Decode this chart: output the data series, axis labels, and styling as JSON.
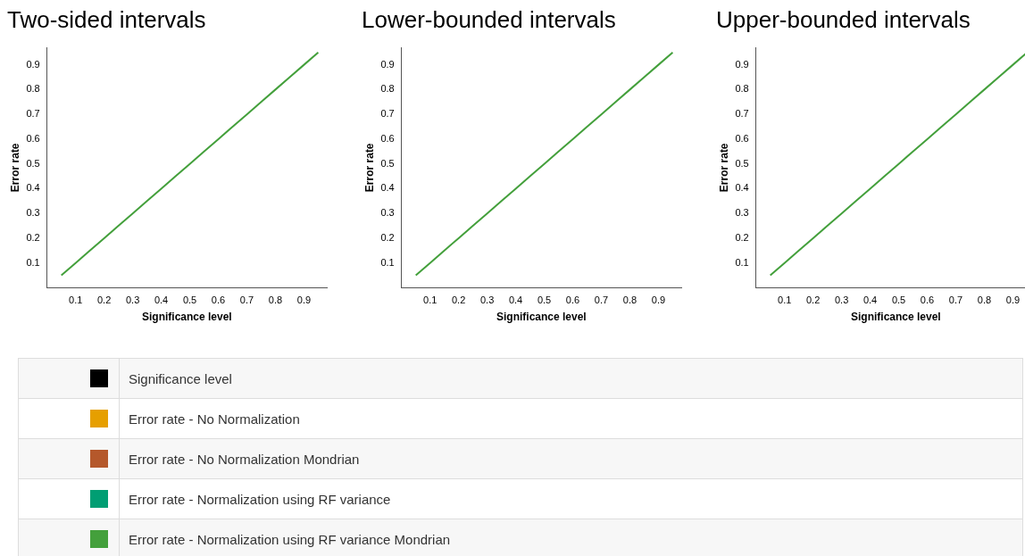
{
  "chart_data": [
    {
      "type": "line",
      "title": "Two-sided intervals",
      "xlabel": "Significance level",
      "ylabel": "Error rate",
      "legend": "bottom",
      "xlim": [
        0,
        0.98
      ],
      "ylim": [
        0,
        0.97
      ],
      "xticks": [
        0.1,
        0.2,
        0.3,
        0.4,
        0.5,
        0.6,
        0.7,
        0.8,
        0.9
      ],
      "yticks": [
        0.1,
        0.2,
        0.3,
        0.4,
        0.5,
        0.6,
        0.7,
        0.8,
        0.9
      ],
      "marker": "none",
      "line_style": "solid",
      "x": [
        0.05,
        0.1,
        0.15,
        0.2,
        0.25,
        0.3,
        0.35,
        0.4,
        0.45,
        0.5,
        0.55,
        0.6,
        0.65,
        0.7,
        0.75,
        0.8,
        0.85,
        0.9,
        0.95
      ],
      "series": [
        {
          "name": "Significance level",
          "color": "#000000",
          "values": [
            null,
            null,
            null,
            null,
            null,
            null,
            null,
            null,
            null,
            null,
            null,
            null,
            null,
            null,
            null,
            null,
            null,
            null,
            null
          ]
        },
        {
          "name": "Error rate - No Normalization",
          "color": "#e69f00",
          "values": [
            null,
            null,
            null,
            null,
            null,
            null,
            null,
            null,
            null,
            null,
            null,
            null,
            null,
            null,
            null,
            null,
            null,
            null,
            null
          ]
        },
        {
          "name": "Error rate - No Normalization Mondrian",
          "color": "#b5582b",
          "values": [
            null,
            null,
            null,
            null,
            null,
            null,
            null,
            null,
            null,
            null,
            null,
            null,
            null,
            null,
            null,
            null,
            null,
            null,
            null
          ]
        },
        {
          "name": "Error rate - Normalization using RF variance",
          "color": "#009e73",
          "values": [
            null,
            null,
            null,
            null,
            null,
            null,
            null,
            null,
            null,
            null,
            null,
            null,
            null,
            null,
            null,
            null,
            null,
            null,
            null
          ]
        },
        {
          "name": "Error rate - Normalization using RF variance Mondrian",
          "color": "#44a03c",
          "values": [
            0.05,
            0.1,
            0.15,
            0.2,
            0.25,
            0.3,
            0.35,
            0.4,
            0.45,
            0.5,
            0.55,
            0.6,
            0.65,
            0.7,
            0.75,
            0.8,
            0.85,
            0.9,
            0.95
          ]
        }
      ]
    },
    {
      "type": "line",
      "title": "Lower-bounded intervals",
      "xlabel": "Significance level",
      "ylabel": "Error rate",
      "xlim": [
        0,
        0.98
      ],
      "ylim": [
        0,
        0.97
      ],
      "xticks": [
        0.1,
        0.2,
        0.3,
        0.4,
        0.5,
        0.6,
        0.7,
        0.8,
        0.9
      ],
      "yticks": [
        0.1,
        0.2,
        0.3,
        0.4,
        0.5,
        0.6,
        0.7,
        0.8,
        0.9
      ],
      "marker": "none",
      "line_style": "solid",
      "x": [
        0.05,
        0.1,
        0.15,
        0.2,
        0.25,
        0.3,
        0.35,
        0.4,
        0.45,
        0.5,
        0.55,
        0.6,
        0.65,
        0.7,
        0.75,
        0.8,
        0.85,
        0.9,
        0.95
      ],
      "series": [
        {
          "color": "#44a03c",
          "values": [
            0.05,
            0.1,
            0.15,
            0.2,
            0.25,
            0.3,
            0.35,
            0.4,
            0.45,
            0.5,
            0.55,
            0.6,
            0.65,
            0.7,
            0.75,
            0.8,
            0.85,
            0.9,
            0.95
          ]
        }
      ]
    },
    {
      "type": "line",
      "title": "Upper-bounded intervals",
      "xlabel": "Significance level",
      "ylabel": "Error rate",
      "xlim": [
        0,
        0.98
      ],
      "ylim": [
        0,
        0.97
      ],
      "xticks": [
        0.1,
        0.2,
        0.3,
        0.4,
        0.5,
        0.6,
        0.7,
        0.8,
        0.9
      ],
      "yticks": [
        0.1,
        0.2,
        0.3,
        0.4,
        0.5,
        0.6,
        0.7,
        0.8,
        0.9
      ],
      "marker": "none",
      "line_style": "solid",
      "x": [
        0.05,
        0.1,
        0.15,
        0.2,
        0.25,
        0.3,
        0.35,
        0.4,
        0.45,
        0.5,
        0.55,
        0.6,
        0.65,
        0.7,
        0.75,
        0.8,
        0.85,
        0.9,
        0.95
      ],
      "series": [
        {
          "color": "#44a03c",
          "values": [
            0.05,
            0.1,
            0.15,
            0.2,
            0.25,
            0.3,
            0.35,
            0.4,
            0.45,
            0.5,
            0.55,
            0.6,
            0.65,
            0.7,
            0.75,
            0.8,
            0.85,
            0.9,
            0.95
          ]
        }
      ]
    }
  ]
}
